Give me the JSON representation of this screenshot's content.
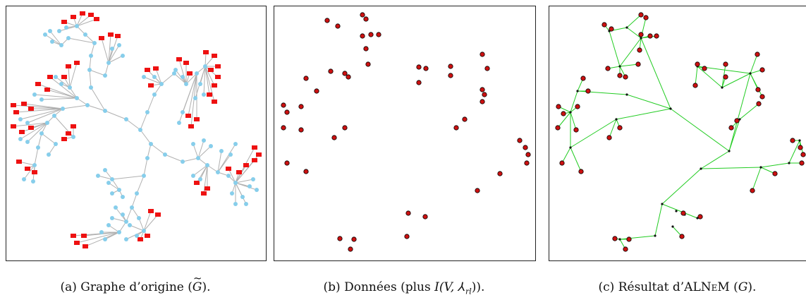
{
  "colors": {
    "node_blue": "#87ceeb",
    "node_red": "#ee1111",
    "edge_gray": "#b0b0b0",
    "edge_green": "#22cc22",
    "point_red": "#cc1111"
  },
  "captions": {
    "a": {
      "prefix": "(a) Graphe d’origine (",
      "symbol": "G",
      "suffix": ")."
    },
    "b": {
      "prefix": "(b) Données (plus ",
      "symbol": "I(V, ⅄",
      "sub": "rl",
      "suffix": "))."
    },
    "c": {
      "prefix": "(c) Résultat d’AL",
      "smallcaps": "NeM",
      "middle": " (",
      "symbol": "G",
      "suffix": ")."
    }
  }
}
